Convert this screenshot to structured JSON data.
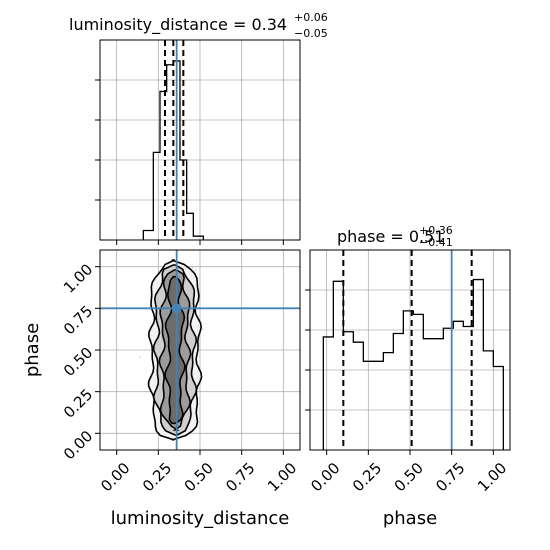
{
  "chart_data": {
    "type": "corner",
    "parameters": [
      "luminosity_distance",
      "phase"
    ],
    "truths": {
      "luminosity_distance": 0.36,
      "phase": 0.75
    },
    "colors": {
      "truth": "#4682b4",
      "hist": "#000000",
      "grid": "#b0b0b0",
      "contour": "#000000"
    },
    "grid": true,
    "panels": [
      {
        "id": "luminosity_distance-marginal",
        "type": "histogram",
        "title": {
          "prefix": "luminosity_distance = ",
          "value": "0.34",
          "plus": "+0.06",
          "minus": "−0.05"
        },
        "xlim": [
          -0.1,
          1.1
        ],
        "ylim": [
          0,
          1.05
        ],
        "bin_edges": [
          0.16,
          0.22,
          0.26,
          0.3,
          0.34,
          0.38,
          0.42,
          0.46,
          0.52
        ],
        "counts": [
          0.05,
          0.46,
          0.78,
          0.92,
          0.94,
          0.42,
          0.14,
          0.02
        ],
        "quantiles": [
          0.29,
          0.34,
          0.4
        ],
        "truth": 0.36
      },
      {
        "id": "phase-marginal",
        "type": "histogram",
        "title": {
          "prefix": "phase = ",
          "value": "0.51",
          "plus": "+0.36",
          "minus": "−0.41"
        },
        "xlim": [
          -0.1,
          1.1
        ],
        "ylim": [
          0,
          1.15
        ],
        "bin_edges": [
          -0.02,
          0.04,
          0.1,
          0.16,
          0.22,
          0.28,
          0.34,
          0.4,
          0.46,
          0.52,
          0.58,
          0.64,
          0.7,
          0.76,
          0.82,
          0.88,
          0.94,
          1.0,
          1.06
        ],
        "counts": [
          0.65,
          0.97,
          0.68,
          0.62,
          0.51,
          0.51,
          0.56,
          0.67,
          0.8,
          0.78,
          0.64,
          0.64,
          0.7,
          0.74,
          0.71,
          0.98,
          0.57,
          0.48
        ],
        "quantiles": [
          0.1,
          0.51,
          0.87
        ],
        "truth": 0.75
      },
      {
        "id": "joint",
        "type": "contour",
        "xlim": [
          -0.1,
          1.1
        ],
        "ylim": [
          -0.1,
          1.1
        ],
        "x_center": 0.35,
        "x_width": 0.05,
        "y_range": [
          0.0,
          1.0
        ],
        "truth": [
          0.36,
          0.75
        ]
      }
    ],
    "ticks": [
      0.0,
      0.25,
      0.5,
      0.75,
      1.0
    ],
    "tick_labels": [
      "0.00",
      "0.25",
      "0.50",
      "0.75",
      "1.00"
    ],
    "xlabels": [
      "luminosity_distance",
      "phase"
    ],
    "ylabel": "phase"
  }
}
